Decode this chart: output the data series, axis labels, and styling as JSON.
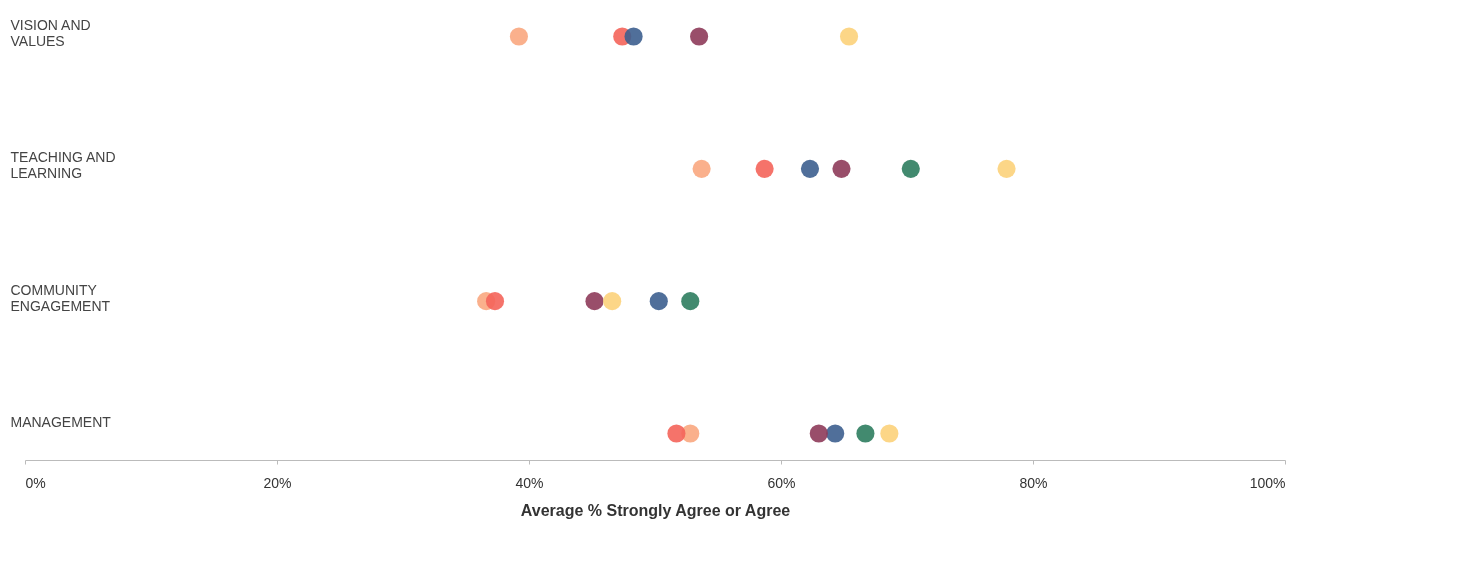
{
  "chart_data": {
    "type": "scatter",
    "orientation": "horizontal",
    "xlabel": "Average % Strongly Agree or Agree",
    "categories": [
      "VISION AND VALUES",
      "TEACHING AND LEARNING",
      "COMMUNITY ENGAGEMENT",
      "MANAGEMENT"
    ],
    "series": [
      {
        "color": "#f9a77f",
        "values": [
          39.2,
          53.7,
          36.6,
          52.8
        ]
      },
      {
        "color": "#f4645a",
        "values": [
          47.4,
          58.7,
          37.3,
          51.7
        ]
      },
      {
        "color": "#3d5f8f",
        "values": [
          48.3,
          62.3,
          50.3,
          64.3
        ]
      },
      {
        "color": "#2e7d5f",
        "values": [
          null,
          70.3,
          52.8,
          66.7
        ]
      },
      {
        "color": "#8e3b5a",
        "values": [
          53.5,
          64.8,
          45.2,
          63.0
        ]
      },
      {
        "color": "#fcd27a",
        "values": [
          65.4,
          77.9,
          46.6,
          68.6
        ]
      }
    ],
    "xlim": [
      0,
      100
    ],
    "xticks": [
      {
        "value": 0,
        "label": "0%"
      },
      {
        "value": 20,
        "label": "20%"
      },
      {
        "value": 40,
        "label": "40%"
      },
      {
        "value": 60,
        "label": "60%"
      },
      {
        "value": 80,
        "label": "80%"
      },
      {
        "value": 100,
        "label": "100%"
      }
    ],
    "grid": false,
    "legend": false,
    "marker": "circle"
  }
}
